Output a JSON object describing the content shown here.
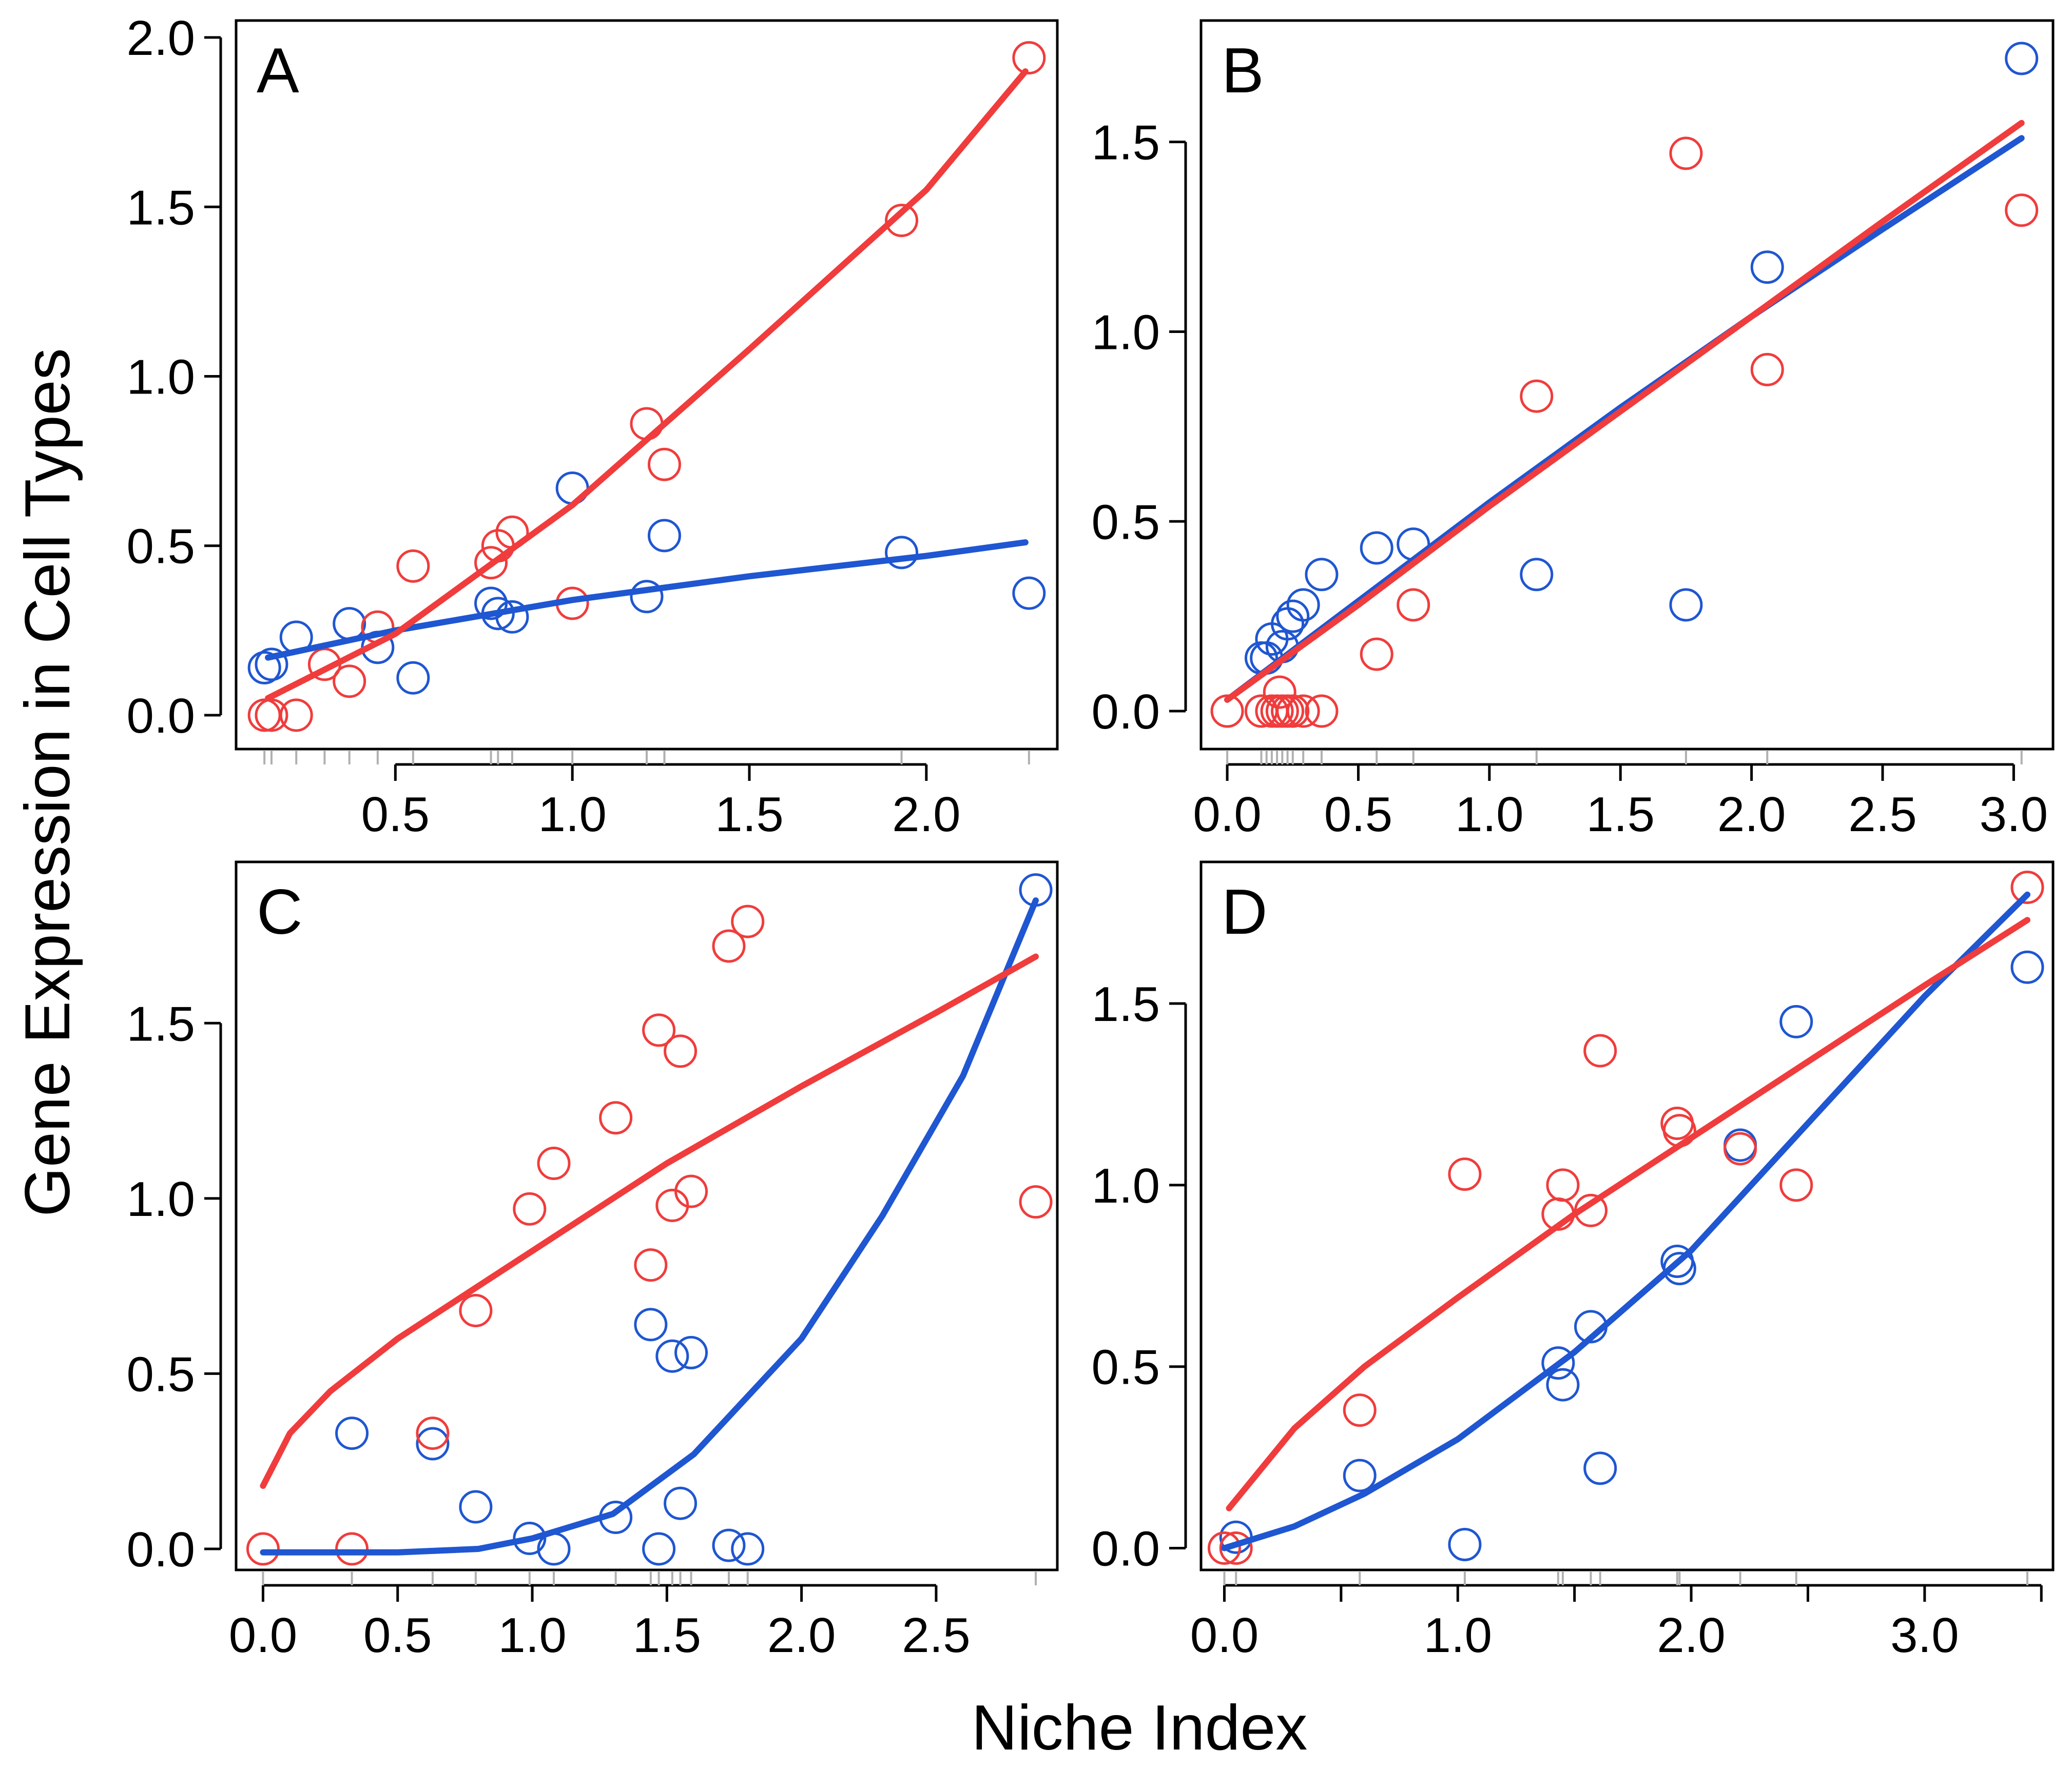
{
  "colors": {
    "red": "#f03c3c",
    "blue": "#1f56d1",
    "rug": "#b0b0b0"
  },
  "xlabel": "Niche Index",
  "ylabel": "Gene Expression in Cell Types",
  "chart_data": [
    {
      "type": "scatter",
      "panel": "A",
      "xlim": [
        0.05,
        2.37
      ],
      "ylim": [
        -0.1,
        2.05
      ],
      "xticks": [
        0.5,
        1.0,
        1.5,
        2.0
      ],
      "xtick_labels": [
        "0.5",
        "1.0",
        "1.5",
        "2.0"
      ],
      "yticks": [
        0.0,
        0.5,
        1.0,
        1.5,
        2.0
      ],
      "ytick_labels": [
        "0.0",
        "0.5",
        "1.0",
        "1.5",
        "2.0"
      ],
      "series": [
        {
          "name": "red",
          "color": "#f03c3c",
          "points": [
            [
              0.13,
              0.0
            ],
            [
              0.15,
              0.0
            ],
            [
              0.22,
              0.0
            ],
            [
              0.3,
              0.15
            ],
            [
              0.37,
              0.1
            ],
            [
              0.45,
              0.26
            ],
            [
              0.55,
              0.44
            ],
            [
              0.77,
              0.45
            ],
            [
              0.79,
              0.5
            ],
            [
              0.83,
              0.54
            ],
            [
              1.0,
              0.33
            ],
            [
              1.21,
              0.86
            ],
            [
              1.26,
              0.74
            ],
            [
              1.93,
              1.46
            ],
            [
              2.29,
              1.94
            ]
          ],
          "fit": [
            [
              0.14,
              0.05
            ],
            [
              0.5,
              0.24
            ],
            [
              1.0,
              0.62
            ],
            [
              1.5,
              1.08
            ],
            [
              2.0,
              1.55
            ],
            [
              2.28,
              1.9
            ]
          ]
        },
        {
          "name": "blue",
          "color": "#1f56d1",
          "points": [
            [
              0.13,
              0.14
            ],
            [
              0.15,
              0.15
            ],
            [
              0.22,
              0.23
            ],
            [
              0.37,
              0.27
            ],
            [
              0.45,
              0.2
            ],
            [
              0.55,
              0.11
            ],
            [
              0.77,
              0.33
            ],
            [
              0.79,
              0.3
            ],
            [
              0.83,
              0.29
            ],
            [
              1.0,
              0.67
            ],
            [
              1.21,
              0.35
            ],
            [
              1.26,
              0.53
            ],
            [
              1.93,
              0.48
            ],
            [
              2.29,
              0.36
            ]
          ],
          "fit": [
            [
              0.14,
              0.17
            ],
            [
              0.5,
              0.25
            ],
            [
              1.0,
              0.34
            ],
            [
              1.5,
              0.41
            ],
            [
              2.0,
              0.47
            ],
            [
              2.28,
              0.51
            ]
          ]
        }
      ],
      "rug_x": [
        0.13,
        0.15,
        0.22,
        0.3,
        0.37,
        0.45,
        0.55,
        0.77,
        0.79,
        0.83,
        1.0,
        1.21,
        1.26,
        1.93,
        2.29
      ]
    },
    {
      "type": "scatter",
      "panel": "B",
      "xlim": [
        -0.1,
        3.15
      ],
      "ylim": [
        -0.1,
        1.82
      ],
      "xticks": [
        0.0,
        0.5,
        1.0,
        1.5,
        2.0,
        2.5,
        3.0
      ],
      "xtick_labels": [
        "0.0",
        "0.5",
        "1.0",
        "1.5",
        "2.0",
        "2.5",
        "3.0"
      ],
      "yticks": [
        0.0,
        0.5,
        1.0,
        1.5
      ],
      "ytick_labels": [
        "0.0",
        "0.5",
        "1.0",
        "1.5"
      ],
      "series": [
        {
          "name": "red",
          "color": "#f03c3c",
          "points": [
            [
              0.0,
              0.0
            ],
            [
              0.13,
              0.0
            ],
            [
              0.17,
              0.0
            ],
            [
              0.19,
              0.0
            ],
            [
              0.21,
              0.0
            ],
            [
              0.23,
              0.0
            ],
            [
              0.25,
              0.0
            ],
            [
              0.29,
              0.0
            ],
            [
              0.36,
              0.0
            ],
            [
              0.2,
              0.05
            ],
            [
              0.57,
              0.15
            ],
            [
              0.71,
              0.28
            ],
            [
              1.18,
              0.83
            ],
            [
              1.75,
              1.47
            ],
            [
              2.06,
              0.9
            ],
            [
              3.03,
              1.32
            ]
          ],
          "fit": [
            [
              0.0,
              0.03
            ],
            [
              0.5,
              0.28
            ],
            [
              1.0,
              0.54
            ],
            [
              1.5,
              0.79
            ],
            [
              2.0,
              1.04
            ],
            [
              2.5,
              1.29
            ],
            [
              3.03,
              1.55
            ]
          ]
        },
        {
          "name": "blue",
          "color": "#1f56d1",
          "points": [
            [
              0.13,
              0.14
            ],
            [
              0.15,
              0.14
            ],
            [
              0.17,
              0.19
            ],
            [
              0.21,
              0.17
            ],
            [
              0.23,
              0.23
            ],
            [
              0.25,
              0.25
            ],
            [
              0.29,
              0.28
            ],
            [
              0.36,
              0.36
            ],
            [
              0.57,
              0.43
            ],
            [
              0.71,
              0.44
            ],
            [
              1.18,
              0.36
            ],
            [
              1.75,
              0.28
            ],
            [
              2.06,
              1.17
            ],
            [
              3.03,
              1.72
            ]
          ],
          "fit": [
            [
              0.0,
              0.03
            ],
            [
              0.5,
              0.29
            ],
            [
              1.0,
              0.55
            ],
            [
              1.5,
              0.8
            ],
            [
              2.0,
              1.04
            ],
            [
              2.5,
              1.27
            ],
            [
              3.03,
              1.51
            ]
          ]
        }
      ],
      "rug_x": [
        0.0,
        0.13,
        0.15,
        0.17,
        0.19,
        0.21,
        0.23,
        0.25,
        0.29,
        0.36,
        0.57,
        0.71,
        1.18,
        1.75,
        2.06,
        3.03
      ]
    },
    {
      "type": "scatter",
      "panel": "C",
      "xlim": [
        -0.1,
        2.95
      ],
      "ylim": [
        -0.06,
        1.96
      ],
      "xticks": [
        0.0,
        0.5,
        1.0,
        1.5,
        2.0,
        2.5
      ],
      "xtick_labels": [
        "0.0",
        "0.5",
        "1.0",
        "1.5",
        "2.0",
        "2.5"
      ],
      "yticks": [
        0.0,
        0.5,
        1.0,
        1.5
      ],
      "ytick_labels": [
        "0.0",
        "0.5",
        "1.0",
        "1.5"
      ],
      "series": [
        {
          "name": "red",
          "color": "#f03c3c",
          "points": [
            [
              0.0,
              0.0
            ],
            [
              0.33,
              0.0
            ],
            [
              0.63,
              0.33
            ],
            [
              0.79,
              0.68
            ],
            [
              0.99,
              0.97
            ],
            [
              1.08,
              1.1
            ],
            [
              1.31,
              1.23
            ],
            [
              1.44,
              0.81
            ],
            [
              1.47,
              1.48
            ],
            [
              1.52,
              0.98
            ],
            [
              1.55,
              1.42
            ],
            [
              1.59,
              1.02
            ],
            [
              1.73,
              1.72
            ],
            [
              1.8,
              1.79
            ],
            [
              2.87,
              0.99
            ]
          ],
          "fit": [
            [
              0.0,
              0.18
            ],
            [
              0.1,
              0.33
            ],
            [
              0.25,
              0.45
            ],
            [
              0.5,
              0.6
            ],
            [
              1.0,
              0.85
            ],
            [
              1.5,
              1.1
            ],
            [
              2.0,
              1.32
            ],
            [
              2.5,
              1.53
            ],
            [
              2.87,
              1.69
            ]
          ]
        },
        {
          "name": "blue",
          "color": "#1f56d1",
          "points": [
            [
              0.33,
              0.33
            ],
            [
              0.63,
              0.3
            ],
            [
              0.79,
              0.12
            ],
            [
              0.99,
              0.03
            ],
            [
              1.08,
              0.0
            ],
            [
              1.31,
              0.09
            ],
            [
              1.44,
              0.64
            ],
            [
              1.47,
              0.0
            ],
            [
              1.52,
              0.55
            ],
            [
              1.55,
              0.13
            ],
            [
              1.59,
              0.56
            ],
            [
              1.73,
              0.01
            ],
            [
              1.8,
              0.0
            ],
            [
              2.87,
              1.88
            ]
          ],
          "fit": [
            [
              0.0,
              -0.01
            ],
            [
              0.5,
              -0.01
            ],
            [
              0.8,
              0.0
            ],
            [
              1.0,
              0.03
            ],
            [
              1.3,
              0.1
            ],
            [
              1.6,
              0.27
            ],
            [
              2.0,
              0.6
            ],
            [
              2.3,
              0.95
            ],
            [
              2.6,
              1.35
            ],
            [
              2.87,
              1.85
            ]
          ]
        }
      ],
      "rug_x": [
        0.0,
        0.33,
        0.63,
        0.79,
        0.99,
        1.08,
        1.31,
        1.44,
        1.47,
        1.52,
        1.55,
        1.59,
        1.73,
        1.8,
        2.87
      ]
    },
    {
      "type": "scatter",
      "panel": "D",
      "xlim": [
        -0.1,
        3.55
      ],
      "ylim": [
        -0.06,
        1.89
      ],
      "xticks": [
        0.0,
        0.5,
        1.0,
        1.5,
        2.0,
        2.5,
        3.0,
        3.5
      ],
      "xtick_labels": [
        "0.0",
        "",
        "1.0",
        "",
        "2.0",
        "",
        "3.0",
        ""
      ],
      "yticks": [
        0.0,
        0.5,
        1.0,
        1.5
      ],
      "ytick_labels": [
        "0.0",
        "0.5",
        "1.0",
        "1.5"
      ],
      "series": [
        {
          "name": "red",
          "color": "#f03c3c",
          "points": [
            [
              0.0,
              0.0
            ],
            [
              0.05,
              0.0
            ],
            [
              0.58,
              0.38
            ],
            [
              1.03,
              1.03
            ],
            [
              1.43,
              0.92
            ],
            [
              1.45,
              1.0
            ],
            [
              1.57,
              0.93
            ],
            [
              1.61,
              1.37
            ],
            [
              1.94,
              1.17
            ],
            [
              1.95,
              1.15
            ],
            [
              2.21,
              1.1
            ],
            [
              2.45,
              1.0
            ],
            [
              3.44,
              1.82
            ]
          ],
          "fit": [
            [
              0.02,
              0.11
            ],
            [
              0.3,
              0.33
            ],
            [
              0.6,
              0.5
            ],
            [
              1.0,
              0.69
            ],
            [
              1.5,
              0.92
            ],
            [
              2.0,
              1.13
            ],
            [
              2.5,
              1.34
            ],
            [
              3.0,
              1.55
            ],
            [
              3.44,
              1.73
            ]
          ]
        },
        {
          "name": "blue",
          "color": "#1f56d1",
          "points": [
            [
              0.05,
              0.03
            ],
            [
              0.58,
              0.2
            ],
            [
              1.03,
              0.01
            ],
            [
              1.43,
              0.51
            ],
            [
              1.45,
              0.45
            ],
            [
              1.57,
              0.61
            ],
            [
              1.61,
              0.22
            ],
            [
              1.94,
              0.79
            ],
            [
              1.95,
              0.77
            ],
            [
              2.21,
              1.11
            ],
            [
              2.45,
              1.45
            ],
            [
              3.44,
              1.6
            ]
          ],
          "fit": [
            [
              0.0,
              0.0
            ],
            [
              0.3,
              0.06
            ],
            [
              0.6,
              0.15
            ],
            [
              1.0,
              0.3
            ],
            [
              1.5,
              0.54
            ],
            [
              2.0,
              0.82
            ],
            [
              2.5,
              1.17
            ],
            [
              3.0,
              1.52
            ],
            [
              3.44,
              1.8
            ]
          ]
        }
      ],
      "rug_x": [
        0.0,
        0.05,
        0.58,
        1.03,
        1.43,
        1.45,
        1.57,
        1.61,
        1.94,
        1.95,
        2.21,
        2.45,
        3.44
      ]
    }
  ]
}
